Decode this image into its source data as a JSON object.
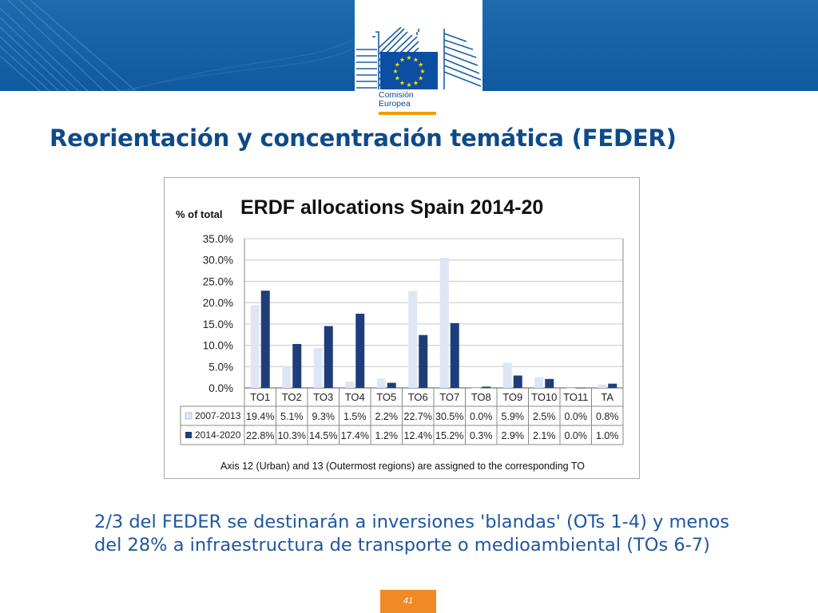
{
  "header": {
    "logo_line1": "Comisión",
    "logo_line2": "Europea",
    "brand_colors": {
      "banner": "#1160a6",
      "accent": "#f59c00",
      "eu_blue": "#0b4ea2",
      "eu_star": "#ffdd00"
    }
  },
  "slide": {
    "title": "Reorientación y concentración temática (FEDER)",
    "body_line1": "2/3 del FEDER se destinarán a inversiones 'blandas' (OTs 1-4) y menos",
    "body_line2": "del 28% a infraestructura de transporte o medioambiental (TOs 6-7)",
    "page_number": "41"
  },
  "chart_data": {
    "type": "bar",
    "title": "ERDF allocations Spain 2014-20",
    "ylabel": "% of total",
    "ylim": [
      0,
      35
    ],
    "yticks": [
      "35.0%",
      "30.0%",
      "25.0%",
      "20.0%",
      "15.0%",
      "10.0%",
      "5.0%",
      "0.0%"
    ],
    "grid": true,
    "categories": [
      "TO1",
      "TO2",
      "TO3",
      "TO4",
      "TO5",
      "TO6",
      "TO7",
      "TO8",
      "TO9",
      "TO10",
      "TO11",
      "TA"
    ],
    "series": [
      {
        "name": "2007-2013",
        "color": "#dde6f2",
        "values": [
          19.4,
          5.1,
          9.3,
          1.5,
          2.2,
          22.7,
          30.5,
          0.0,
          5.9,
          2.5,
          0.0,
          0.8
        ],
        "labels": [
          "19.4%",
          "5.1%",
          "9.3%",
          "1.5%",
          "2.2%",
          "22.7%",
          "30.5%",
          "0.0%",
          "5.9%",
          "2.5%",
          "0.0%",
          "0.8%"
        ]
      },
      {
        "name": "2014-2020",
        "color": "#1f3d7a",
        "values": [
          22.8,
          10.3,
          14.5,
          17.4,
          1.2,
          12.4,
          15.2,
          0.3,
          2.9,
          2.1,
          0.0,
          1.0
        ],
        "labels": [
          "22.8%",
          "10.3%",
          "14.5%",
          "17.4%",
          "1.2%",
          "12.4%",
          "15.2%",
          "0.3%",
          "2.9%",
          "2.1%",
          "0.0%",
          "1.0%"
        ]
      }
    ],
    "footnote": "Axis 12 (Urban) and 13 (Outermost regions) are assigned to the corresponding TO"
  }
}
